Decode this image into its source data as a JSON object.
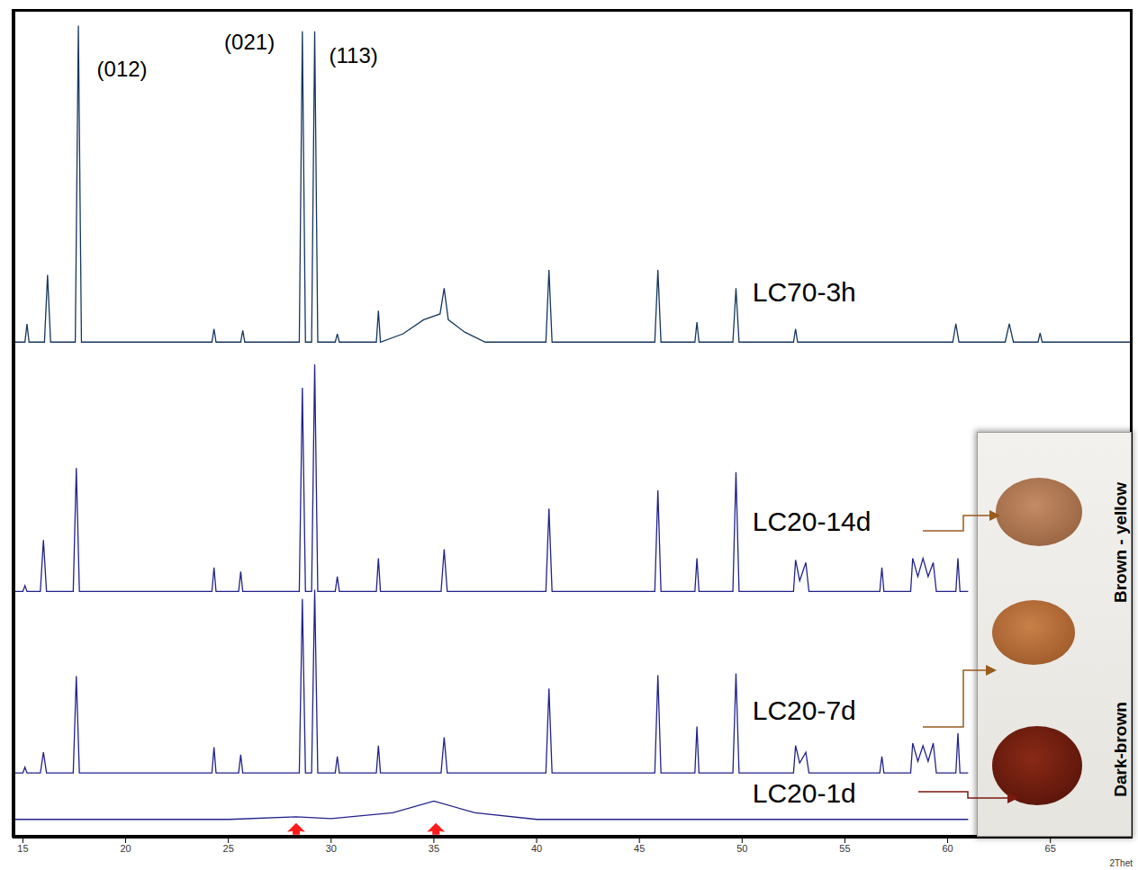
{
  "chart_data": {
    "type": "line",
    "x_label": "2Thet",
    "xlim": [
      14.5,
      69
    ],
    "xticks": [
      15,
      20,
      25,
      30,
      35,
      40,
      45,
      50,
      55,
      60,
      65
    ],
    "ylim": [
      0,
      100
    ],
    "yticks": [],
    "tick_labels": "x",
    "grid": false,
    "series": [
      {
        "name": "LC70-3h",
        "color": "#17375e",
        "x": [
          14.5,
          15.1,
          15.2,
          15.3,
          16.05,
          16.2,
          16.35,
          17.55,
          17.7,
          17.85,
          24.2,
          24.3,
          24.4,
          25.6,
          25.7,
          25.8,
          28.45,
          28.6,
          28.75,
          29.05,
          29.2,
          29.35,
          30.2,
          30.3,
          30.4,
          32.2,
          32.3,
          32.4,
          33.5,
          34.5,
          35.3,
          35.5,
          35.7,
          36.5,
          37.5,
          40.45,
          40.6,
          40.75,
          45.75,
          45.9,
          46.05,
          47.7,
          47.8,
          47.9,
          49.55,
          49.7,
          49.85,
          52.5,
          52.6,
          52.7,
          60.25,
          60.4,
          60.55,
          62.8,
          63.0,
          63.2,
          64.4,
          64.5,
          64.6,
          69
        ],
        "values": [
          59.8,
          59.8,
          62.0,
          59.8,
          59.8,
          67.9,
          59.8,
          59.8,
          98.0,
          59.8,
          59.8,
          61.4,
          59.8,
          59.8,
          61.2,
          59.8,
          59.8,
          97.3,
          59.8,
          59.8,
          97.3,
          59.8,
          59.8,
          60.8,
          59.8,
          59.8,
          63.6,
          59.8,
          60.8,
          62.5,
          63.2,
          66.3,
          62.5,
          61.0,
          59.8,
          59.8,
          68.5,
          59.8,
          59.8,
          68.5,
          59.8,
          59.8,
          62.2,
          59.8,
          59.8,
          66.3,
          59.8,
          59.8,
          61.4,
          59.8,
          59.8,
          62.0,
          59.8,
          59.8,
          62.0,
          59.8,
          59.8,
          60.9,
          59.8,
          59.8
        ]
      },
      {
        "name": "LC20-14d",
        "color": "#22228a",
        "x": [
          14.5,
          15.0,
          15.1,
          15.2,
          15.85,
          16.0,
          16.15,
          17.45,
          17.6,
          17.75,
          24.2,
          24.3,
          24.4,
          25.5,
          25.6,
          25.7,
          28.45,
          28.6,
          28.75,
          29.05,
          29.2,
          29.35,
          30.2,
          30.3,
          30.4,
          32.2,
          32.3,
          32.4,
          35.35,
          35.5,
          35.65,
          40.45,
          40.6,
          40.75,
          45.75,
          45.9,
          46.05,
          47.7,
          47.8,
          47.9,
          49.55,
          49.7,
          49.85,
          52.5,
          52.6,
          52.8,
          53.1,
          53.25,
          56.7,
          56.8,
          56.9,
          58.2,
          58.3,
          58.55,
          58.8,
          59.05,
          59.3,
          59.45,
          60.4,
          60.5,
          60.6,
          61
        ],
        "values": [
          29.7,
          29.7,
          30.4,
          29.7,
          29.7,
          35.9,
          29.7,
          29.7,
          44.6,
          29.7,
          29.7,
          32.6,
          29.7,
          29.7,
          32.1,
          29.7,
          29.7,
          54.3,
          29.7,
          29.7,
          57.1,
          29.7,
          29.7,
          31.5,
          29.7,
          29.7,
          33.7,
          29.7,
          29.7,
          34.8,
          29.7,
          29.7,
          39.7,
          29.7,
          29.7,
          41.9,
          29.7,
          29.7,
          33.7,
          29.7,
          29.7,
          44.1,
          29.7,
          29.7,
          33.5,
          31.0,
          33.2,
          29.7,
          29.7,
          32.6,
          29.7,
          29.7,
          33.7,
          31.5,
          33.7,
          31.5,
          33.2,
          29.7,
          29.7,
          33.7,
          29.7,
          29.7
        ]
      },
      {
        "name": "LC20-7d",
        "color": "#22228a",
        "x": [
          14.5,
          15.0,
          15.1,
          15.2,
          15.85,
          16.0,
          16.15,
          17.45,
          17.6,
          17.75,
          24.2,
          24.3,
          24.4,
          25.5,
          25.6,
          25.7,
          28.45,
          28.6,
          28.75,
          29.05,
          29.2,
          29.35,
          30.2,
          30.3,
          30.4,
          32.2,
          32.3,
          32.4,
          35.35,
          35.5,
          35.65,
          40.45,
          40.6,
          40.75,
          45.75,
          45.9,
          46.05,
          47.7,
          47.8,
          47.9,
          49.55,
          49.7,
          49.85,
          52.5,
          52.6,
          52.8,
          53.1,
          53.25,
          56.7,
          56.8,
          56.9,
          58.2,
          58.3,
          58.55,
          58.8,
          59.05,
          59.3,
          59.45,
          60.4,
          60.5,
          60.6,
          61
        ],
        "values": [
          7.8,
          7.8,
          8.5,
          7.8,
          7.8,
          10.3,
          7.8,
          7.8,
          19.5,
          7.8,
          7.8,
          10.9,
          7.8,
          7.8,
          10.0,
          7.8,
          7.8,
          28.8,
          7.8,
          7.8,
          29.9,
          7.8,
          7.8,
          9.8,
          7.8,
          7.8,
          11.1,
          7.8,
          7.8,
          12.1,
          7.8,
          7.8,
          18.0,
          7.8,
          7.8,
          19.6,
          7.8,
          7.8,
          13.4,
          7.8,
          7.8,
          19.8,
          7.8,
          7.8,
          11.1,
          9.0,
          10.3,
          7.8,
          7.8,
          9.8,
          7.8,
          7.8,
          11.4,
          9.2,
          11.1,
          9.2,
          11.4,
          7.8,
          7.8,
          12.6,
          7.8,
          7.8
        ]
      },
      {
        "name": "LC20-1d",
        "color": "#22228a",
        "x": [
          14.5,
          25,
          28.3,
          30,
          33,
          35,
          37,
          40,
          61
        ],
        "values": [
          2.2,
          2.2,
          2.5,
          2.3,
          3.0,
          4.4,
          3.0,
          2.2,
          2.2
        ]
      }
    ],
    "annotations": [
      {
        "text": "(012)",
        "x": 18.6,
        "y": 91.9
      },
      {
        "text": "(021)",
        "x": 24.8,
        "y": 95.1
      },
      {
        "text": "(113)",
        "x": 29.9,
        "y": 93.5
      }
    ],
    "arrows": [
      {
        "x": 28.3,
        "y": 0.9
      },
      {
        "x": 35.1,
        "y": 0.9
      }
    ],
    "inset_labels": [
      "Brown - yellow",
      "Dark-brown"
    ]
  }
}
